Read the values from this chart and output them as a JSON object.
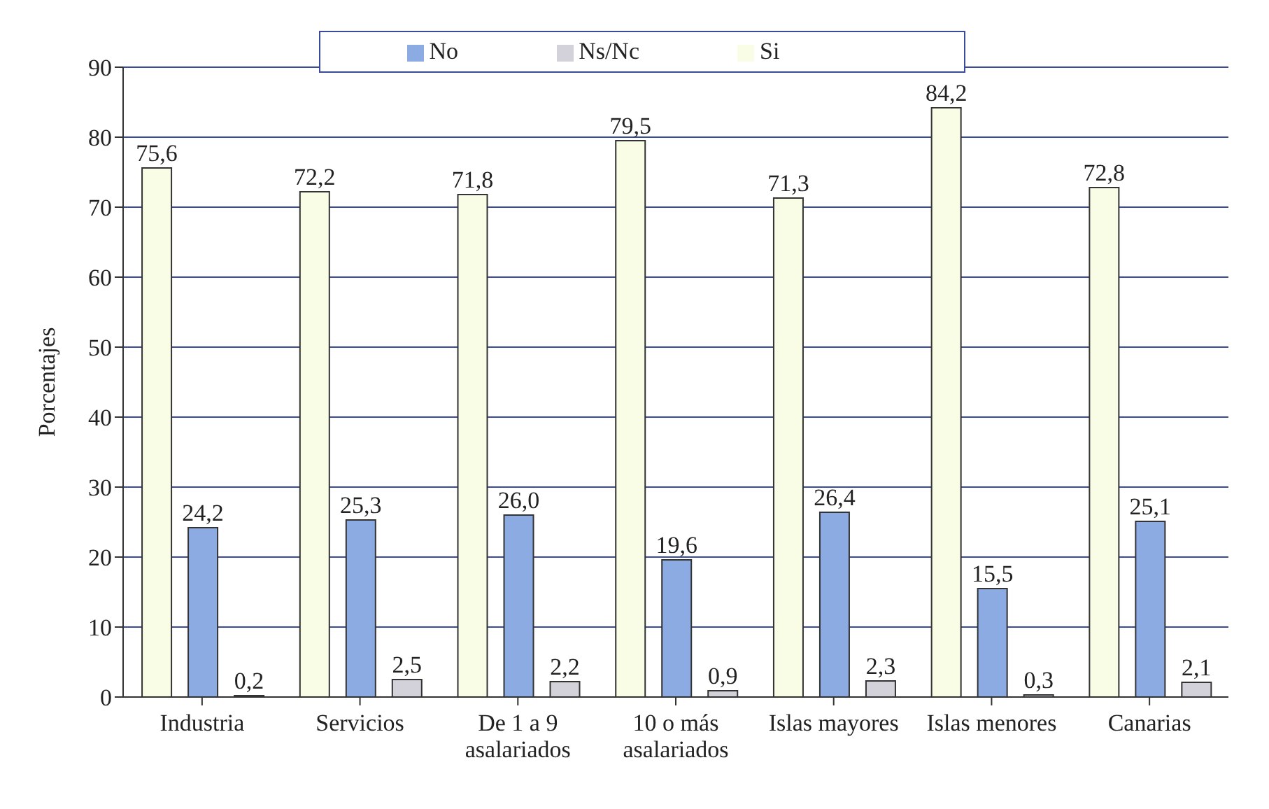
{
  "chart_data": {
    "type": "bar",
    "ylabel": "Porcentajes",
    "categories": [
      "Industria",
      "Servicios",
      "De 1 a 9 asalariados",
      "10 o más asalariados",
      "Islas mayores",
      "Islas menores",
      "Canarias"
    ],
    "series": [
      {
        "name": "Si",
        "color": "#fafde6",
        "values": [
          75.6,
          72.2,
          71.8,
          79.5,
          71.3,
          84.2,
          72.8
        ],
        "value_labels": [
          "75,6",
          "72,2",
          "71,8",
          "79,5",
          "71,3",
          "84,2",
          "72,8"
        ]
      },
      {
        "name": "No",
        "color": "#8cabe3",
        "values": [
          24.2,
          25.3,
          26.0,
          19.6,
          26.4,
          15.5,
          25.1
        ],
        "value_labels": [
          "24,2",
          "25,3",
          "26,0",
          "19,6",
          "26,4",
          "15,5",
          "25,1"
        ]
      },
      {
        "name": "Ns/Nc",
        "color": "#d3d1d9",
        "values": [
          0.2,
          2.5,
          2.2,
          0.9,
          2.3,
          0.3,
          2.1
        ],
        "value_labels": [
          "0,2",
          "2,5",
          "2,2",
          "0,9",
          "2,3",
          "0,3",
          "2,1"
        ]
      }
    ],
    "ylim": [
      0,
      90
    ],
    "yticks": [
      0,
      10,
      20,
      30,
      40,
      50,
      60,
      70,
      80,
      90
    ],
    "grid": "y",
    "legend": "top"
  }
}
